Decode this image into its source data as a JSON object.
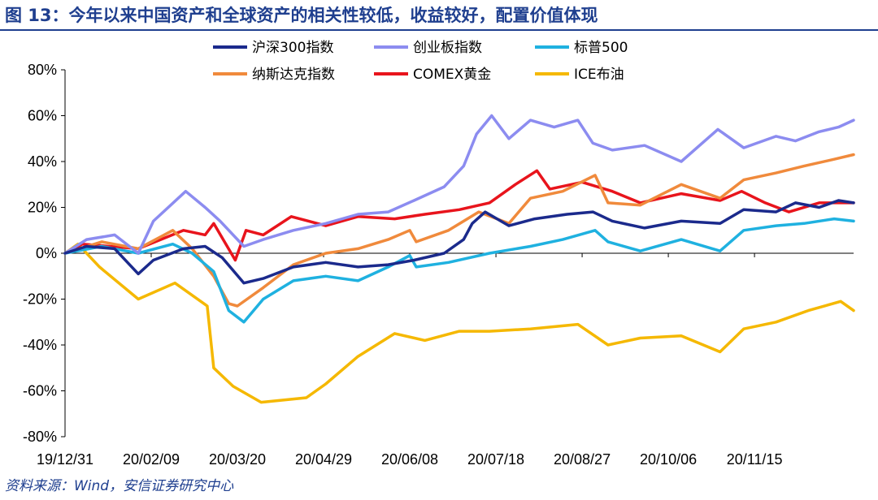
{
  "header": {
    "title": "图 13：今年以来中国资产和全球资产的相关性较低，收益较好，配置价值体现"
  },
  "footer": {
    "source": "资料来源：Wind，安信证券研究中心"
  },
  "chart_data": {
    "type": "line",
    "title": "",
    "xlabel": "",
    "ylabel": "",
    "y_unit": "%",
    "ylim": [
      -80,
      80
    ],
    "yticks": [
      -80,
      -60,
      -40,
      -20,
      0,
      20,
      40,
      60,
      80
    ],
    "ytick_labels": [
      "-80%",
      "-60%",
      "-40%",
      "-20%",
      "0%",
      "20%",
      "40%",
      "60%",
      "80%"
    ],
    "x_start": "2019-12-31",
    "x_end": "2020-12-31",
    "xticks": [
      "2019-12-31",
      "2020-02-09",
      "2020-03-20",
      "2020-04-29",
      "2020-06-08",
      "2020-07-18",
      "2020-08-27",
      "2020-10-06",
      "2020-11-15"
    ],
    "xtick_labels": [
      "19/12/31",
      "20/02/09",
      "20/03/20",
      "20/04/29",
      "20/06/08",
      "20/07/18",
      "20/08/27",
      "20/10/06",
      "20/11/15"
    ],
    "grid": false,
    "legend_position": "top",
    "legend_columns": 3,
    "series": [
      {
        "name": "沪深300指数",
        "color": "#1B2A8C",
        "x": [
          "2019-12-31",
          "2020-01-10",
          "2020-01-23",
          "2020-02-03",
          "2020-02-10",
          "2020-02-24",
          "2020-03-05",
          "2020-03-13",
          "2020-03-23",
          "2020-04-01",
          "2020-04-15",
          "2020-04-30",
          "2020-05-15",
          "2020-05-29",
          "2020-06-10",
          "2020-06-24",
          "2020-07-03",
          "2020-07-07",
          "2020-07-13",
          "2020-07-24",
          "2020-08-05",
          "2020-08-20",
          "2020-09-01",
          "2020-09-10",
          "2020-09-25",
          "2020-10-12",
          "2020-10-30",
          "2020-11-10",
          "2020-11-25",
          "2020-12-04",
          "2020-12-15",
          "2020-12-24",
          "2020-12-31"
        ],
        "y": [
          0,
          3,
          2,
          -9,
          -3,
          2,
          3,
          -2,
          -13,
          -11,
          -6,
          -4,
          -6,
          -5,
          -3,
          0,
          6,
          13,
          18,
          12,
          15,
          17,
          18,
          14,
          11,
          14,
          13,
          19,
          18,
          22,
          20,
          23,
          22
        ]
      },
      {
        "name": "创业板指数",
        "color": "#8C8CF0",
        "x": [
          "2019-12-31",
          "2020-01-10",
          "2020-01-23",
          "2020-02-03",
          "2020-02-10",
          "2020-02-25",
          "2020-03-05",
          "2020-03-12",
          "2020-03-23",
          "2020-04-01",
          "2020-04-15",
          "2020-04-30",
          "2020-05-15",
          "2020-05-29",
          "2020-06-10",
          "2020-06-24",
          "2020-07-03",
          "2020-07-09",
          "2020-07-16",
          "2020-07-24",
          "2020-08-03",
          "2020-08-14",
          "2020-08-25",
          "2020-09-01",
          "2020-09-10",
          "2020-09-25",
          "2020-10-12",
          "2020-10-29",
          "2020-11-10",
          "2020-11-25",
          "2020-12-04",
          "2020-12-15",
          "2020-12-24",
          "2020-12-31"
        ],
        "y": [
          0,
          6,
          8,
          0,
          14,
          27,
          20,
          14,
          3,
          6,
          10,
          13,
          17,
          18,
          23,
          29,
          38,
          52,
          60,
          50,
          58,
          55,
          58,
          48,
          45,
          47,
          40,
          54,
          46,
          51,
          49,
          53,
          55,
          58
        ]
      },
      {
        "name": "标普500",
        "color": "#1FB1E0",
        "x": [
          "2019-12-31",
          "2020-01-17",
          "2020-02-03",
          "2020-02-19",
          "2020-02-28",
          "2020-03-09",
          "2020-03-16",
          "2020-03-23",
          "2020-04-01",
          "2020-04-15",
          "2020-04-30",
          "2020-05-15",
          "2020-05-29",
          "2020-06-08",
          "2020-06-11",
          "2020-06-26",
          "2020-07-15",
          "2020-08-03",
          "2020-08-18",
          "2020-09-02",
          "2020-09-08",
          "2020-09-23",
          "2020-10-12",
          "2020-10-30",
          "2020-11-10",
          "2020-11-25",
          "2020-12-08",
          "2020-12-22",
          "2020-12-31"
        ],
        "y": [
          0,
          3,
          0,
          4,
          0,
          -8,
          -25,
          -30,
          -20,
          -12,
          -10,
          -12,
          -6,
          -1,
          -6,
          -4,
          0,
          3,
          6,
          10,
          5,
          1,
          6,
          1,
          10,
          12,
          13,
          15,
          14
        ]
      },
      {
        "name": "纳斯达克指数",
        "color": "#F08A3C",
        "x": [
          "2019-12-31",
          "2020-01-17",
          "2020-02-03",
          "2020-02-19",
          "2020-02-28",
          "2020-03-09",
          "2020-03-16",
          "2020-03-20",
          "2020-04-01",
          "2020-04-15",
          "2020-04-30",
          "2020-05-15",
          "2020-05-29",
          "2020-06-08",
          "2020-06-11",
          "2020-06-26",
          "2020-07-10",
          "2020-07-24",
          "2020-08-03",
          "2020-08-18",
          "2020-09-02",
          "2020-09-08",
          "2020-09-23",
          "2020-10-12",
          "2020-10-30",
          "2020-11-10",
          "2020-11-25",
          "2020-12-08",
          "2020-12-22",
          "2020-12-31"
        ],
        "y": [
          0,
          5,
          2,
          10,
          2,
          -10,
          -22,
          -23,
          -15,
          -5,
          0,
          2,
          6,
          10,
          5,
          10,
          18,
          13,
          24,
          27,
          34,
          22,
          21,
          30,
          24,
          32,
          35,
          38,
          41,
          43
        ]
      },
      {
        "name": "COMEX黄金",
        "color": "#E8141C",
        "x": [
          "2019-12-31",
          "2020-01-08",
          "2020-02-03",
          "2020-02-24",
          "2020-03-05",
          "2020-03-09",
          "2020-03-19",
          "2020-03-24",
          "2020-04-01",
          "2020-04-14",
          "2020-04-30",
          "2020-05-15",
          "2020-06-01",
          "2020-06-15",
          "2020-07-01",
          "2020-07-15",
          "2020-07-27",
          "2020-08-06",
          "2020-08-12",
          "2020-08-27",
          "2020-09-10",
          "2020-09-23",
          "2020-10-12",
          "2020-10-30",
          "2020-11-09",
          "2020-11-20",
          "2020-12-01",
          "2020-12-15",
          "2020-12-31"
        ],
        "y": [
          0,
          4,
          2,
          10,
          8,
          13,
          -3,
          10,
          8,
          16,
          12,
          16,
          15,
          17,
          19,
          22,
          30,
          36,
          28,
          31,
          27,
          22,
          26,
          23,
          27,
          22,
          18,
          22,
          22
        ]
      },
      {
        "name": "ICE布油",
        "color": "#F5B800",
        "x": [
          "2019-12-31",
          "2020-01-06",
          "2020-01-16",
          "2020-02-03",
          "2020-02-20",
          "2020-03-06",
          "2020-03-09",
          "2020-03-18",
          "2020-03-31",
          "2020-04-21",
          "2020-04-30",
          "2020-05-15",
          "2020-06-01",
          "2020-06-15",
          "2020-07-01",
          "2020-07-15",
          "2020-08-03",
          "2020-08-25",
          "2020-09-08",
          "2020-09-23",
          "2020-10-12",
          "2020-10-30",
          "2020-11-10",
          "2020-11-25",
          "2020-12-10",
          "2020-12-25",
          "2020-12-31"
        ],
        "y": [
          0,
          4,
          -6,
          -20,
          -13,
          -23,
          -50,
          -58,
          -65,
          -63,
          -57,
          -45,
          -35,
          -38,
          -34,
          -34,
          -33,
          -31,
          -40,
          -37,
          -36,
          -43,
          -33,
          -30,
          -25,
          -21,
          -25
        ]
      }
    ]
  }
}
